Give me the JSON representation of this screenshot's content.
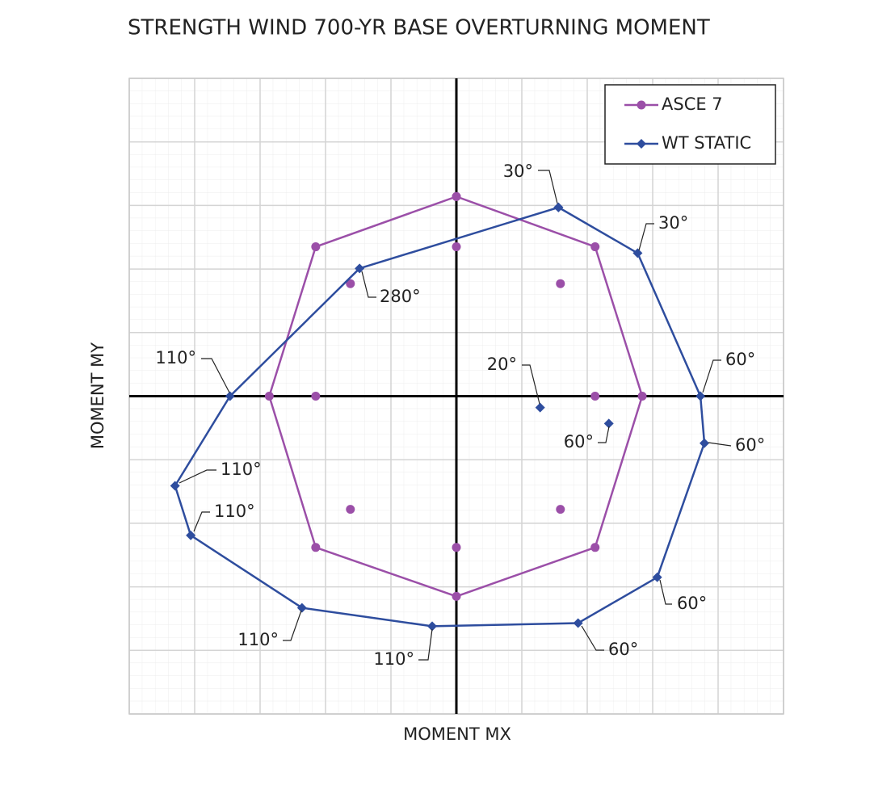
{
  "chart_data": {
    "type": "line",
    "title": "STRENGTH WIND 700-YR BASE OVERTURNING MOMENT",
    "x_label": "MOMENT MX",
    "y_label": "MOMENT MY",
    "xlim": [
      -5,
      5
    ],
    "ylim": [
      -5,
      5
    ],
    "xticks": [
      -5,
      -4,
      -3,
      -2,
      -1,
      0,
      1,
      2,
      3,
      4,
      5
    ],
    "yticks": [
      -5,
      -4,
      -3,
      -2,
      -1,
      0,
      1,
      2,
      3,
      4,
      5
    ],
    "grid": true,
    "legend": "top-right",
    "series": [
      {
        "name": "ASCE 7",
        "color": "#9b4fa8",
        "marker": "circle",
        "x": [
          0,
          2.12,
          2.84,
          2.12,
          0,
          -2.15,
          -2.86,
          -2.15,
          0,
          null,
          0,
          null,
          1.59,
          null,
          2.12,
          null,
          1.59,
          null,
          0,
          null,
          -1.62,
          null,
          -2.15,
          null,
          -1.62
        ],
        "values": [
          3.14,
          2.35,
          0,
          -2.38,
          -3.15,
          -2.38,
          0,
          2.35,
          3.14,
          null,
          2.35,
          null,
          1.77,
          null,
          0,
          null,
          -1.78,
          null,
          -2.38,
          null,
          -1.78,
          null,
          0,
          null,
          1.77
        ]
      },
      {
        "name": "WT STATIC",
        "color": "#2e4d9e",
        "marker": "diamond",
        "x": [
          1.56,
          2.77,
          3.73,
          3.79,
          3.07,
          1.86,
          -0.37,
          -2.36,
          -4.06,
          -4.3,
          -3.46,
          -1.48,
          1.56,
          null,
          1.28,
          null,
          2.33
        ],
        "values": [
          2.97,
          2.25,
          0,
          -0.74,
          -2.85,
          -3.57,
          -3.62,
          -3.33,
          -2.19,
          -1.41,
          0,
          2.01,
          2.97,
          null,
          -0.18,
          null,
          -0.43
        ]
      }
    ],
    "annotations": [
      "30°",
      "30°",
      "280°",
      "20°",
      "110°",
      "60°",
      "60°",
      "60°",
      "110°",
      "110°",
      "60°",
      "110°",
      "110°",
      "60°"
    ]
  }
}
